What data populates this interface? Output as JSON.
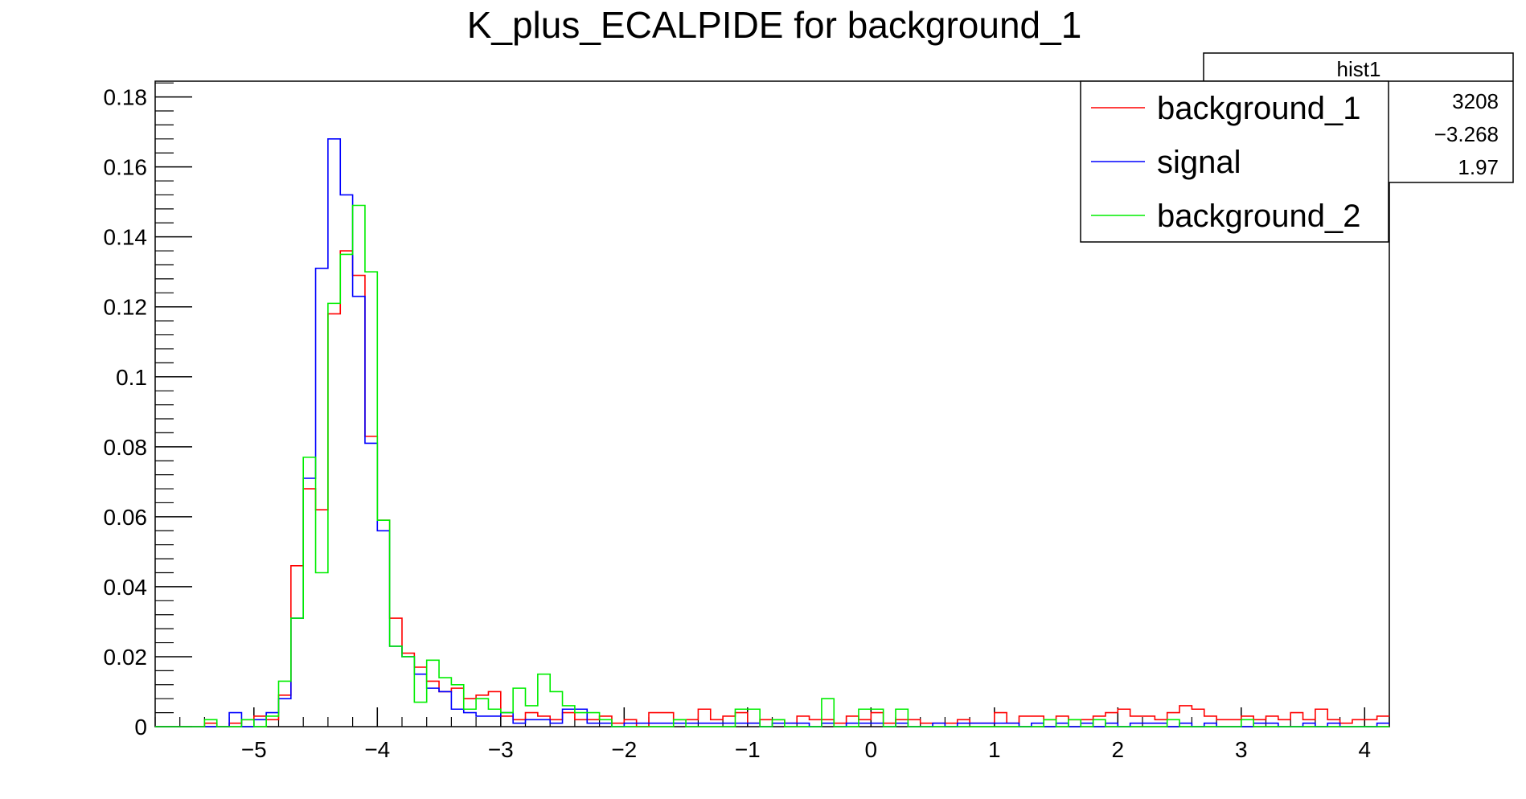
{
  "chart_data": {
    "type": "histogram",
    "title": "K_plus_ECALPIDE for background_1",
    "xlabel": "",
    "ylabel": "",
    "xlim": [
      -5.8,
      4.2
    ],
    "ylim": [
      0,
      0.1845
    ],
    "bin_width": 0.1,
    "x_ticks": [
      -5,
      -4,
      -3,
      -2,
      -1,
      0,
      1,
      2,
      3,
      4
    ],
    "x_tick_labels": [
      "−5",
      "−4",
      "−3",
      "−2",
      "−1",
      "0",
      "1",
      "2",
      "3",
      "4"
    ],
    "y_ticks": [
      0,
      0.02,
      0.04,
      0.06,
      0.08,
      0.1,
      0.12,
      0.14,
      0.16,
      0.18
    ],
    "y_tick_labels": [
      "0",
      "0.02",
      "0.04",
      "0.06",
      "0.08",
      "0.1",
      "0.12",
      "0.14",
      "0.16",
      "0.18"
    ],
    "series": [
      {
        "name": "background_1",
        "color": "#ff0000",
        "values": [
          0,
          0,
          0,
          0,
          0.001,
          0,
          0.001,
          0.002,
          0.003,
          0.002,
          0.009,
          0.046,
          0.068,
          0.062,
          0.118,
          0.136,
          0.129,
          0.083,
          0.059,
          0.031,
          0.021,
          0.017,
          0.013,
          0.01,
          0.011,
          0.008,
          0.009,
          0.01,
          0.003,
          0.002,
          0.004,
          0.003,
          0.002,
          0.004,
          0.002,
          0.002,
          0.003,
          0.001,
          0.002,
          0,
          0.004,
          0.004,
          0.002,
          0.002,
          0.005,
          0.002,
          0.003,
          0.004,
          0.001,
          0.002,
          0.002,
          0.001,
          0.003,
          0.002,
          0.002,
          0.001,
          0.003,
          0.002,
          0.004,
          0.001,
          0.002,
          0.002,
          0.001,
          0.001,
          0.001,
          0.002,
          0.001,
          0.001,
          0.004,
          0.001,
          0.003,
          0.003,
          0.002,
          0.003,
          0.002,
          0.002,
          0.003,
          0.004,
          0.005,
          0.003,
          0.003,
          0.002,
          0.004,
          0.006,
          0.005,
          0.003,
          0.002,
          0.002,
          0.003,
          0.002,
          0.003,
          0.002,
          0.004,
          0.002,
          0.005,
          0.002,
          0.001,
          0.002,
          0.002,
          0.003
        ]
      },
      {
        "name": "signal",
        "color": "#0000ff",
        "values": [
          0,
          0,
          0,
          0,
          0,
          0,
          0.004,
          0,
          0.002,
          0.004,
          0.008,
          0.031,
          0.071,
          0.131,
          0.168,
          0.152,
          0.123,
          0.081,
          0.056,
          0.023,
          0.02,
          0.015,
          0.011,
          0.01,
          0.005,
          0.004,
          0.003,
          0.003,
          0.004,
          0.001,
          0.002,
          0.002,
          0.001,
          0.005,
          0.005,
          0.001,
          0.001,
          0,
          0.001,
          0.001,
          0.001,
          0.001,
          0.001,
          0.001,
          0.001,
          0.001,
          0.001,
          0.001,
          0.001,
          0,
          0.001,
          0.001,
          0.001,
          0,
          0.001,
          0,
          0.001,
          0.001,
          0.001,
          0,
          0.001,
          0,
          0,
          0.001,
          0,
          0.001,
          0.001,
          0.001,
          0.001,
          0.001,
          0,
          0.001,
          0,
          0.001,
          0,
          0.001,
          0,
          0.001,
          0,
          0.001,
          0.001,
          0.001,
          0,
          0.001,
          0,
          0.001,
          0,
          0,
          0,
          0.001,
          0.001,
          0,
          0,
          0.001,
          0,
          0.001,
          0,
          0,
          0,
          0.001
        ]
      },
      {
        "name": "background_2",
        "color": "#00ee00",
        "values": [
          0,
          0,
          0,
          0,
          0.002,
          0,
          0,
          0.002,
          0,
          0.003,
          0.013,
          0.031,
          0.077,
          0.044,
          0.121,
          0.135,
          0.149,
          0.13,
          0.059,
          0.023,
          0.02,
          0.007,
          0.019,
          0.014,
          0.012,
          0.005,
          0.008,
          0.005,
          0.004,
          0.011,
          0.006,
          0.015,
          0.01,
          0.006,
          0.004,
          0.004,
          0.002,
          0,
          0,
          0,
          0,
          0,
          0.002,
          0,
          0,
          0,
          0,
          0.005,
          0.005,
          0,
          0.002,
          0,
          0,
          0,
          0.008,
          0,
          0,
          0.005,
          0.005,
          0,
          0.005,
          0,
          0,
          0,
          0,
          0,
          0,
          0,
          0,
          0,
          0,
          0,
          0.002,
          0,
          0.002,
          0,
          0.002,
          0,
          0,
          0,
          0,
          0,
          0.002,
          0,
          0,
          0,
          0,
          0,
          0.002,
          0,
          0,
          0,
          0,
          0,
          0,
          0,
          0,
          0,
          0,
          0
        ]
      }
    ],
    "legend": {
      "position": "top-right",
      "entries": [
        "background_1",
        "signal",
        "background_2"
      ]
    },
    "stats_box": {
      "title": "hist1",
      "values": [
        "3208",
        "−3.268",
        "1.97"
      ]
    }
  }
}
